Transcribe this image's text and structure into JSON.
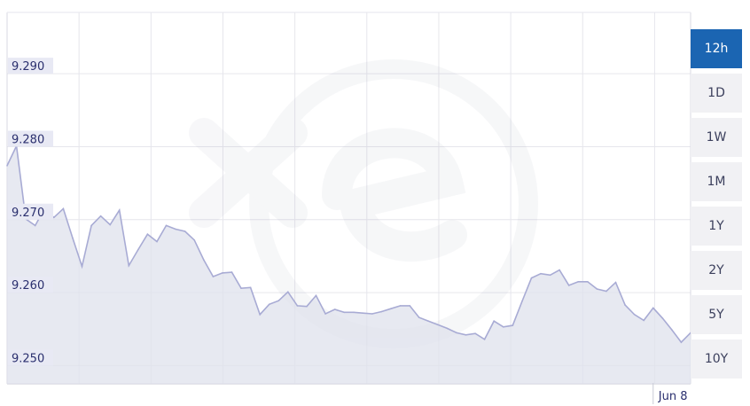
{
  "chart_data": {
    "type": "area",
    "ylim": [
      9.2475,
      9.2984
    ],
    "y_ticks": [
      "9.290",
      "9.280",
      "9.270",
      "9.260",
      "9.250"
    ],
    "y_tick_values": [
      9.29,
      9.28,
      9.27,
      9.26,
      9.25
    ],
    "x_ticks": [
      "Jun 8"
    ],
    "x_tick_index": 69,
    "values": [
      9.2774,
      9.2801,
      9.2701,
      9.2692,
      9.2715,
      9.2703,
      9.2715,
      9.2675,
      9.2636,
      9.2692,
      9.2705,
      9.2693,
      9.2713,
      9.2637,
      9.2659,
      9.268,
      9.267,
      9.2692,
      9.2687,
      9.2684,
      9.2672,
      9.2645,
      9.2622,
      9.2627,
      9.2628,
      9.2606,
      9.2607,
      9.257,
      9.2584,
      9.2589,
      9.2601,
      9.2582,
      9.2581,
      9.2596,
      9.2571,
      9.2577,
      9.2573,
      9.2573,
      9.2572,
      9.2571,
      9.2574,
      9.2578,
      9.2582,
      9.2582,
      9.2566,
      9.2561,
      9.2556,
      9.2551,
      9.2545,
      9.2542,
      9.2544,
      9.2536,
      9.2561,
      9.2553,
      9.2555,
      9.2588,
      9.262,
      9.2626,
      9.2624,
      9.2631,
      9.261,
      9.2615,
      9.2615,
      9.2605,
      9.2602,
      9.2614,
      9.2583,
      9.257,
      9.2562,
      9.2579,
      9.2565,
      9.2549,
      9.2532,
      9.2545
    ],
    "grid": true,
    "color": "#a8abd4"
  },
  "ranges": [
    "12h",
    "1D",
    "1W",
    "1M",
    "1Y",
    "2Y",
    "5Y",
    "10Y"
  ],
  "active_range": "12h"
}
